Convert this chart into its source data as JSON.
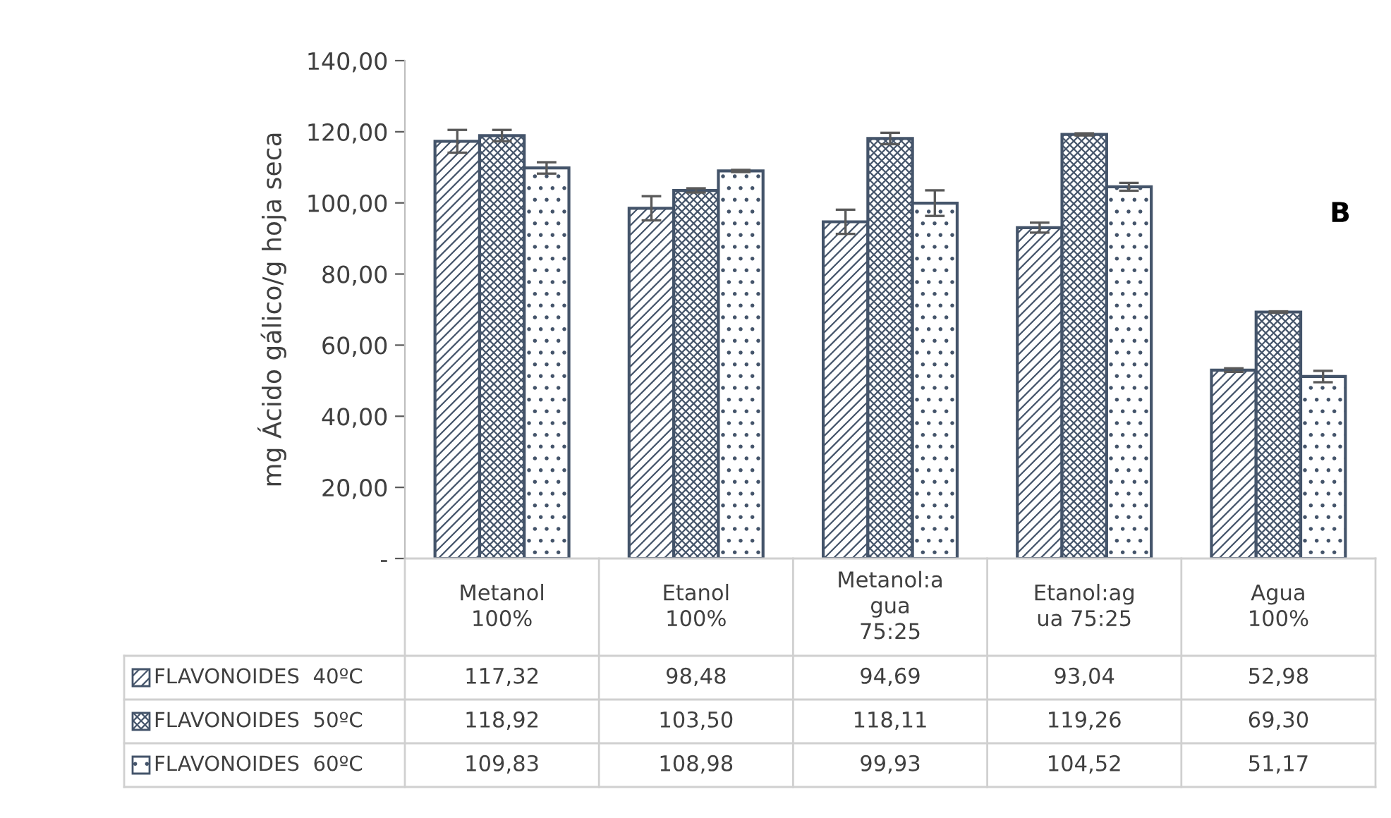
{
  "chart_data": {
    "type": "bar",
    "ylabel": "mg Ácido gálico/g hoja seca",
    "categories": [
      "Metanol 100%",
      "Etanol 100%",
      "Metanol:agua 75:25",
      "Etanol:agua 75:25",
      "Agua 100%"
    ],
    "series": [
      {
        "name": "FLAVONOIDES  40ºC",
        "color": "#44546a",
        "values": [
          117.32,
          98.48,
          94.69,
          93.04,
          52.98
        ],
        "value_labels": [
          "117,32",
          "98,48",
          "94,69",
          "93,04",
          "52,98"
        ],
        "errors": [
          3.2,
          3.4,
          3.4,
          1.4,
          0.5
        ]
      },
      {
        "name": "FLAVONOIDES  50ºC",
        "color": "#44546a",
        "values": [
          118.92,
          103.5,
          118.11,
          119.26,
          69.3
        ],
        "value_labels": [
          "118,92",
          "103,50",
          "118,11",
          "119,26",
          "69,30"
        ],
        "errors": [
          1.6,
          0.6,
          1.6,
          0.3,
          0.2
        ]
      },
      {
        "name": "FLAVONOIDES  60ºC",
        "color": "#44546a",
        "values": [
          109.83,
          108.98,
          99.93,
          104.52,
          51.17
        ],
        "value_labels": [
          "109,83",
          "108,98",
          "99,93",
          "104,52",
          "51,17"
        ],
        "errors": [
          1.6,
          0.3,
          3.6,
          1.1,
          1.6
        ]
      }
    ],
    "ylim": [
      0,
      140
    ],
    "yticks": [
      {
        "value": 0,
        "label": "-"
      },
      {
        "value": 20,
        "label": "20,00"
      },
      {
        "value": 40,
        "label": "40,00"
      },
      {
        "value": 60,
        "label": "60,00"
      },
      {
        "value": 80,
        "label": "80,00"
      },
      {
        "value": 100,
        "label": "100,00"
      },
      {
        "value": 120,
        "label": "120,00"
      },
      {
        "value": 140,
        "label": "140,00"
      }
    ],
    "legend": "bottom",
    "grid": false,
    "annotations": [
      "B"
    ]
  }
}
